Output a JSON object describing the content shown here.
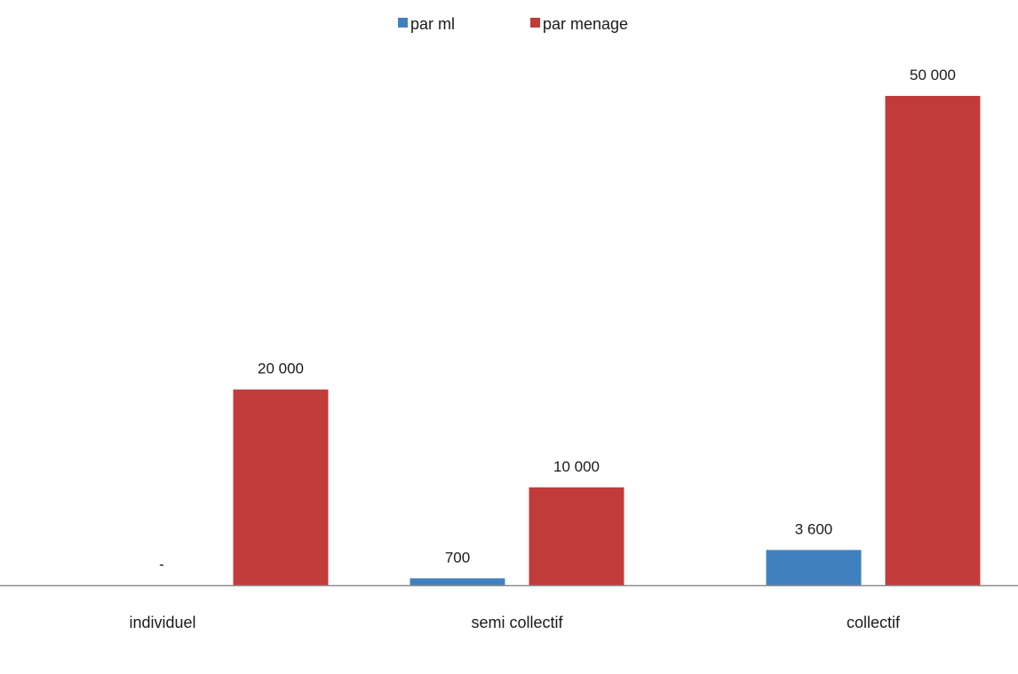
{
  "chart_data": {
    "type": "bar",
    "categories": [
      "individuel",
      "semi collectif",
      "collectif"
    ],
    "series": [
      {
        "name": "par ml",
        "values": [
          0,
          700,
          3600
        ],
        "labels": [
          "-",
          "700",
          "3 600"
        ],
        "color": "#4180BF"
      },
      {
        "name": "par menage",
        "values": [
          20000,
          10000,
          50000
        ],
        "labels": [
          "20 000",
          "10 000",
          "50 000"
        ],
        "color": "#C23B3B"
      }
    ],
    "title": "",
    "xlabel": "",
    "ylabel": "",
    "ylim": [
      0,
      50000
    ],
    "grid": false,
    "legend": "top-center",
    "axis_color": "#8C8C8C"
  }
}
